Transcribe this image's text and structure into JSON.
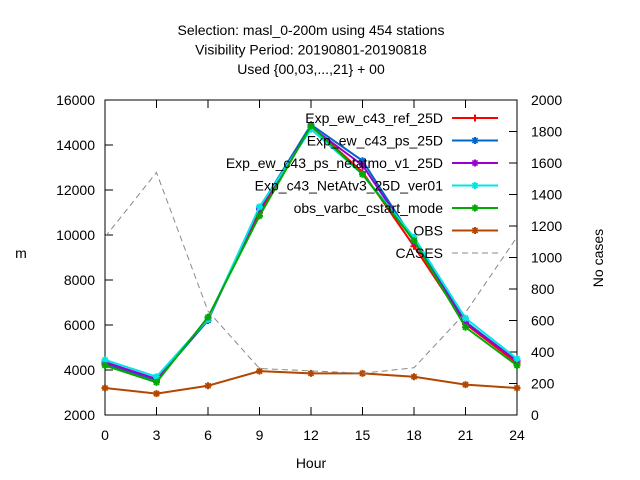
{
  "chart_data": {
    "type": "line",
    "title_lines": [
      "Selection: masl_0-200m using   454 stations",
      "Visibility   Period: 20190801-20190818",
      "Used {00,03,...,21} + 00"
    ],
    "xlabel": "Hour",
    "ylabel": "m",
    "y2label": "No cases",
    "x": [
      0,
      3,
      6,
      9,
      12,
      15,
      18,
      21,
      24
    ],
    "xlim": [
      0,
      24
    ],
    "ylim": [
      2000,
      16000
    ],
    "y2lim": [
      0,
      2000
    ],
    "xticks": [
      "0",
      "3",
      "6",
      "9",
      "12",
      "15",
      "18",
      "21",
      "24"
    ],
    "yticks": [
      "2000",
      "4000",
      "6000",
      "8000",
      "10000",
      "12000",
      "14000",
      "16000"
    ],
    "y2ticks": [
      "0",
      "200",
      "400",
      "600",
      "800",
      "1000",
      "1200",
      "1400",
      "1600",
      "1800",
      "2000"
    ],
    "grid": false,
    "legend_position": "top-right",
    "series": [
      {
        "name": "Exp_ew_c43_ref_25D",
        "color": "#ff0000",
        "marker": "plus",
        "values": [
          4250,
          3550,
          6300,
          11000,
          14850,
          12800,
          9500,
          6050,
          4300
        ]
      },
      {
        "name": "Exp_ew_c43_ps_25D",
        "color": "#0066cc",
        "marker": "star",
        "values": [
          4300,
          3550,
          6200,
          11200,
          14900,
          13300,
          9750,
          6150,
          4400
        ]
      },
      {
        "name": "Exp_ew_c43_ps_netatmo_v1_25D",
        "color": "#9900cc",
        "marker": "star",
        "values": [
          4350,
          3600,
          6250,
          11150,
          14800,
          13100,
          9700,
          6100,
          4400
        ]
      },
      {
        "name": "Exp_c43_NetAtv3_25D_ver01",
        "color": "#00e6e6",
        "marker": "star",
        "values": [
          4450,
          3700,
          6250,
          11250,
          14700,
          12700,
          9900,
          6300,
          4500
        ]
      },
      {
        "name": "obs_varbc_cstart_mode",
        "color": "#00aa00",
        "marker": "star",
        "values": [
          4200,
          3450,
          6350,
          10850,
          14850,
          12700,
          9750,
          5900,
          4200
        ]
      },
      {
        "name": "OBS",
        "color": "#b34700",
        "marker": "star",
        "values": [
          3200,
          2950,
          3300,
          3950,
          3850,
          3850,
          3700,
          3350,
          3200
        ]
      },
      {
        "name": "CASES",
        "color": "#888888",
        "dash": true,
        "axis": "y2",
        "values": [
          1130,
          1540,
          660,
          295,
          280,
          265,
          300,
          650,
          1130
        ]
      }
    ]
  }
}
